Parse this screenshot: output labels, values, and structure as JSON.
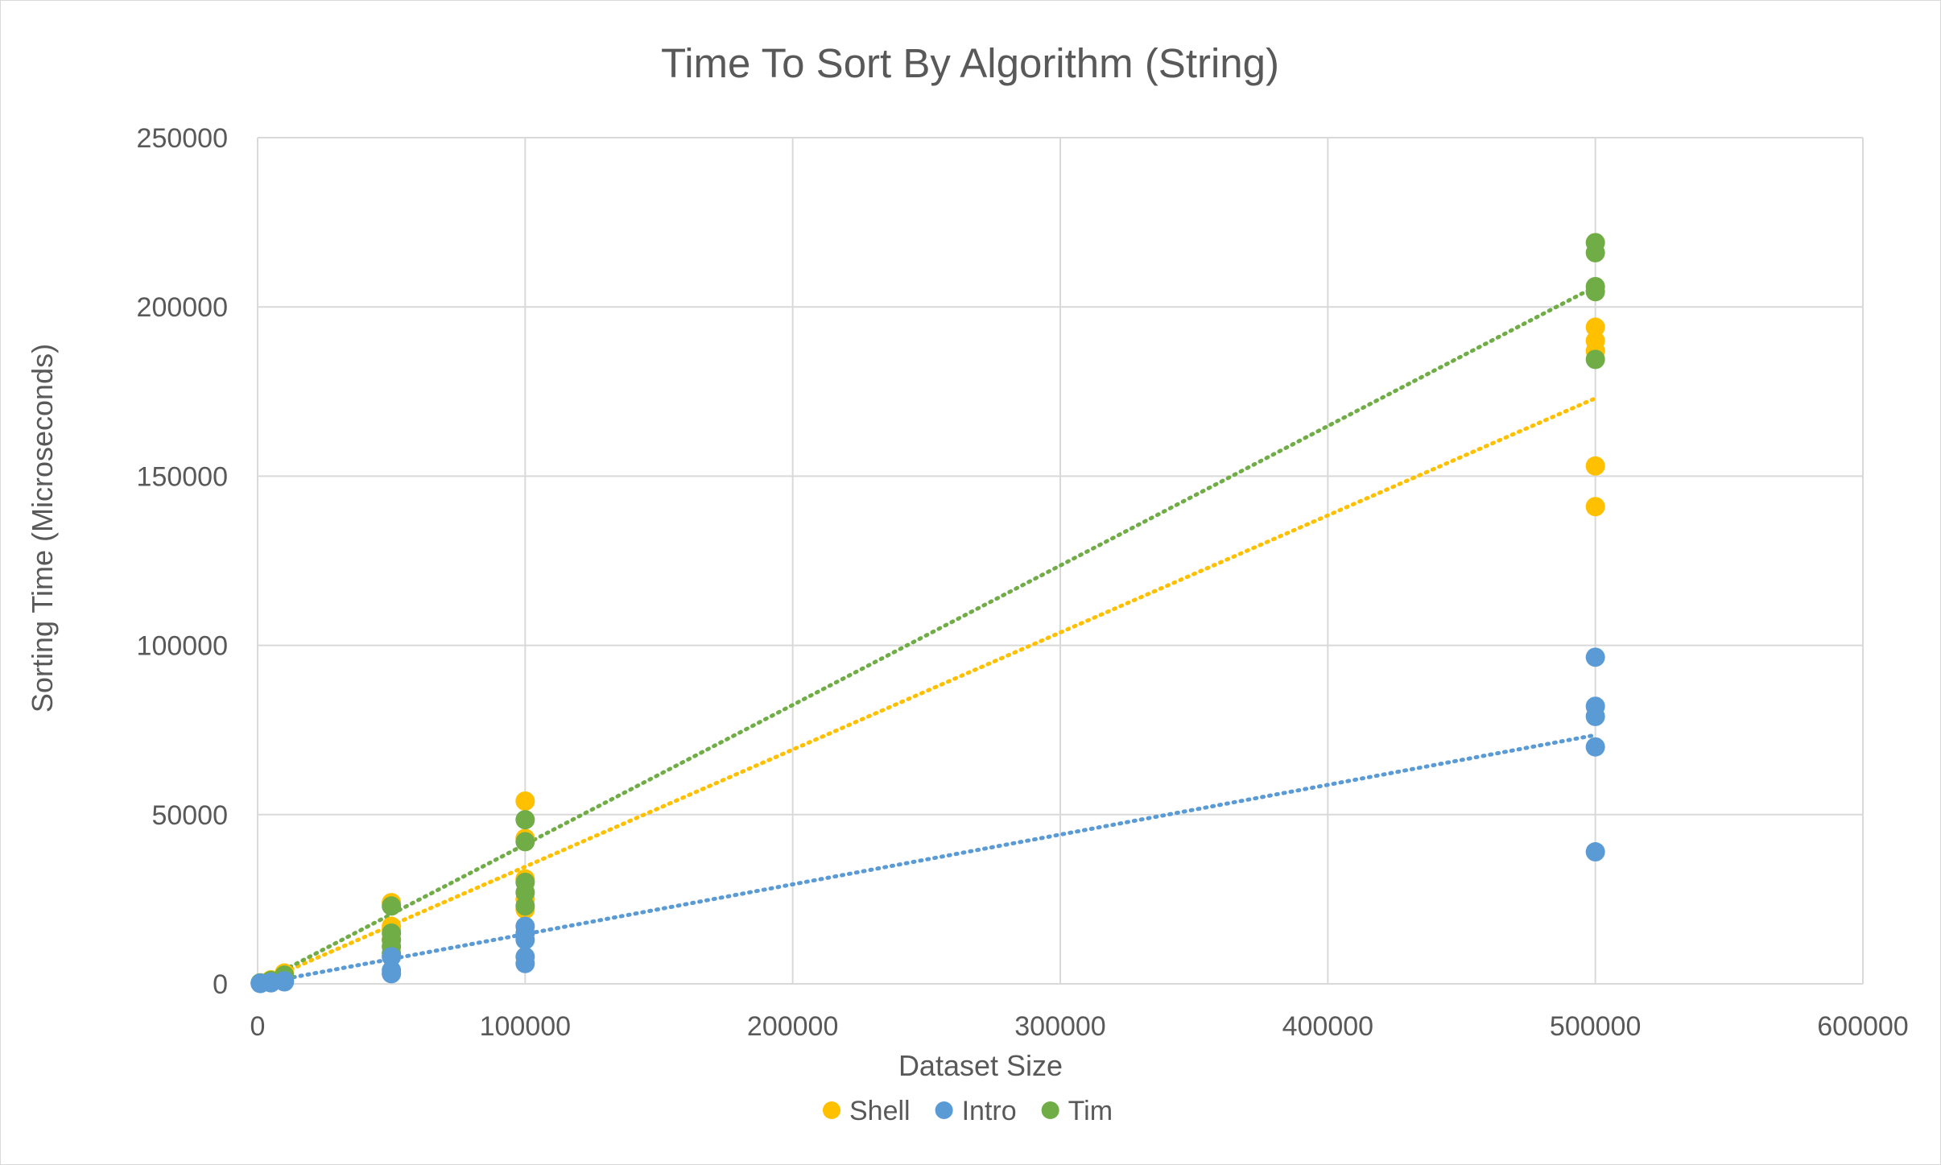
{
  "chart_data": {
    "type": "scatter",
    "title": "Time To Sort By Algorithm (String)",
    "xlabel": "Dataset Size",
    "ylabel": "Sorting Time (Microseconds)",
    "xlim": [
      0,
      600000
    ],
    "ylim": [
      0,
      250000
    ],
    "x_ticks": [
      0,
      100000,
      200000,
      300000,
      400000,
      500000,
      600000
    ],
    "y_ticks": [
      0,
      50000,
      100000,
      150000,
      200000,
      250000
    ],
    "x_tick_labels": [
      "0",
      "100000",
      "200000",
      "300000",
      "400000",
      "500000",
      "600000"
    ],
    "y_tick_labels": [
      "0",
      "50000",
      "100000",
      "150000",
      "200000",
      "250000"
    ],
    "grid": true,
    "legend_position": "bottom",
    "series": [
      {
        "name": "Shell",
        "color": "#ffc000",
        "points": [
          [
            1000,
            200
          ],
          [
            1000,
            300
          ],
          [
            5000,
            900
          ],
          [
            5000,
            1200
          ],
          [
            10000,
            2500
          ],
          [
            10000,
            3200
          ],
          [
            50000,
            24000
          ],
          [
            50000,
            17000
          ],
          [
            50000,
            16000
          ],
          [
            50000,
            13000
          ],
          [
            100000,
            54000
          ],
          [
            100000,
            43000
          ],
          [
            100000,
            31000
          ],
          [
            100000,
            25000
          ],
          [
            100000,
            22000
          ],
          [
            500000,
            194000
          ],
          [
            500000,
            190000
          ],
          [
            500000,
            187000
          ],
          [
            500000,
            153000
          ],
          [
            500000,
            141000
          ]
        ],
        "trend": [
          [
            0,
            0
          ],
          [
            500000,
            173000
          ]
        ]
      },
      {
        "name": "Intro",
        "color": "#5b9bd5",
        "points": [
          [
            1000,
            100
          ],
          [
            1000,
            200
          ],
          [
            5000,
            300
          ],
          [
            5000,
            500
          ],
          [
            10000,
            600
          ],
          [
            10000,
            900
          ],
          [
            50000,
            3000
          ],
          [
            50000,
            4000
          ],
          [
            50000,
            8000
          ],
          [
            100000,
            17000
          ],
          [
            100000,
            15000
          ],
          [
            100000,
            13000
          ],
          [
            100000,
            8000
          ],
          [
            100000,
            6000
          ],
          [
            500000,
            96500
          ],
          [
            500000,
            82000
          ],
          [
            500000,
            79000
          ],
          [
            500000,
            70000
          ],
          [
            500000,
            39000
          ]
        ],
        "trend": [
          [
            0,
            0
          ],
          [
            500000,
            73500
          ]
        ]
      },
      {
        "name": "Tim",
        "color": "#70ad47",
        "points": [
          [
            1000,
            150
          ],
          [
            1000,
            300
          ],
          [
            5000,
            700
          ],
          [
            5000,
            1000
          ],
          [
            10000,
            1800
          ],
          [
            10000,
            2600
          ],
          [
            50000,
            23000
          ],
          [
            50000,
            15000
          ],
          [
            50000,
            13000
          ],
          [
            50000,
            11000
          ],
          [
            50000,
            9000
          ],
          [
            100000,
            48500
          ],
          [
            100000,
            42000
          ],
          [
            100000,
            30000
          ],
          [
            100000,
            27000
          ],
          [
            100000,
            23000
          ],
          [
            500000,
            219000
          ],
          [
            500000,
            216000
          ],
          [
            500000,
            206000
          ],
          [
            500000,
            204500
          ],
          [
            500000,
            184500
          ]
        ],
        "trend": [
          [
            0,
            0
          ],
          [
            500000,
            206000
          ]
        ]
      }
    ]
  }
}
